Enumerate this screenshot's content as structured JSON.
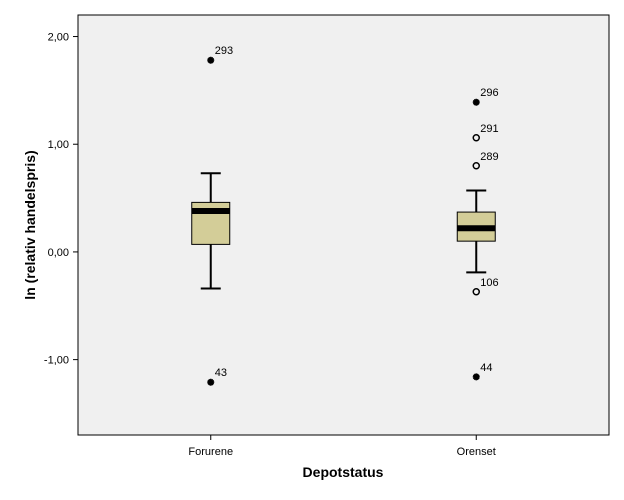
{
  "chart_data": {
    "type": "boxplot",
    "xlabel": "Depotstatus",
    "ylabel": "ln (relativ handelspris)",
    "ylim": [
      -1.7,
      2.2
    ],
    "yticks": [
      {
        "value": -1,
        "label": "-1,00"
      },
      {
        "value": 0,
        "label": "0,00"
      },
      {
        "value": 1,
        "label": "1,00"
      },
      {
        "value": 2,
        "label": "2,00"
      }
    ],
    "grid": false,
    "colors": {
      "plot_background": "#f0f0f0",
      "box_fill": "#d3cd98",
      "median": "#000000",
      "axis": "#000000"
    },
    "categories": [
      "Forurene",
      "Orenset"
    ],
    "boxes": [
      {
        "category": "Forurene",
        "whisker_low": -0.34,
        "q1": 0.07,
        "median": 0.38,
        "q3": 0.46,
        "whisker_high": 0.73,
        "outliers": [
          {
            "label": "293",
            "value": 1.78,
            "marker": "star"
          },
          {
            "label": "43",
            "value": -1.21,
            "marker": "star"
          }
        ]
      },
      {
        "category": "Orenset",
        "whisker_low": -0.19,
        "q1": 0.1,
        "median": 0.22,
        "q3": 0.37,
        "whisker_high": 0.57,
        "outliers": [
          {
            "label": "296",
            "value": 1.39,
            "marker": "star"
          },
          {
            "label": "291",
            "value": 1.06,
            "marker": "circle"
          },
          {
            "label": "289",
            "value": 0.8,
            "marker": "circle"
          },
          {
            "label": "106",
            "value": -0.37,
            "marker": "circle"
          },
          {
            "label": "44",
            "value": -1.16,
            "marker": "star"
          }
        ]
      }
    ]
  }
}
